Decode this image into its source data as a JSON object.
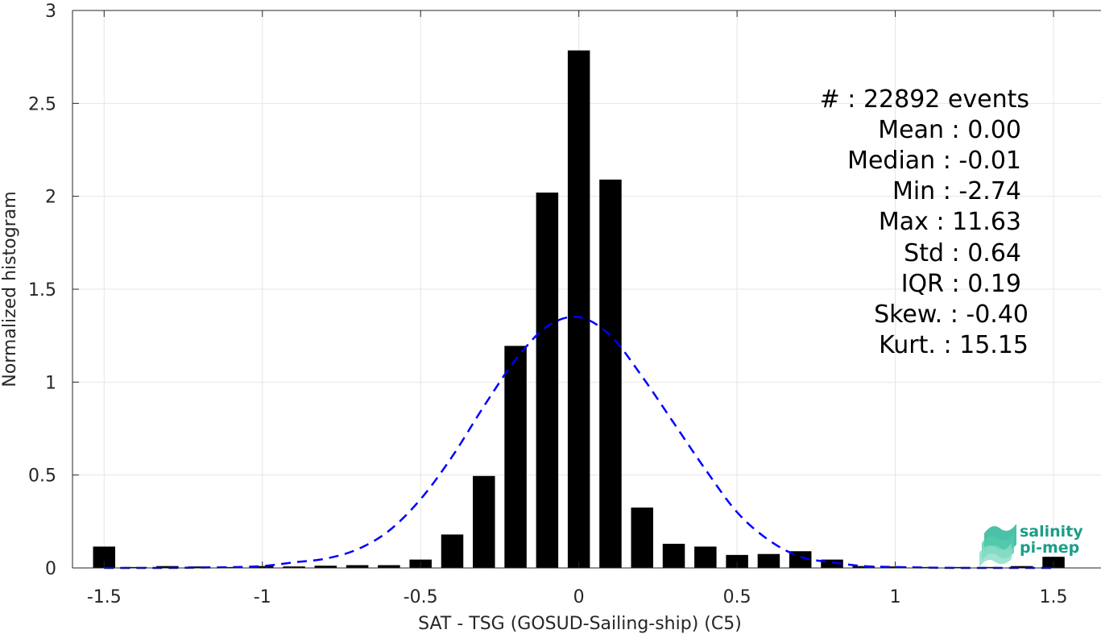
{
  "chart_data": {
    "type": "bar",
    "xlabel": "SAT - TSG (GOSUD-Sailing-ship) (C5)",
    "ylabel": "Normalized histogram",
    "xlim": [
      -1.6,
      1.65
    ],
    "ylim": [
      0,
      3
    ],
    "xticks": [
      -1.5,
      -1,
      -0.5,
      0,
      0.5,
      1,
      1.5
    ],
    "xtick_labels": [
      "-1.5",
      "-1",
      "-0.5",
      "0",
      "0.5",
      "1",
      "1.5"
    ],
    "yticks": [
      0,
      0.5,
      1,
      1.5,
      2,
      2.5,
      3
    ],
    "ytick_labels": [
      "0",
      "0.5",
      "1",
      "1.5",
      "2",
      "2.5",
      "3"
    ],
    "grid": true,
    "bar_width": 0.07,
    "bars": {
      "x": [
        -1.5,
        -1.4,
        -1.3,
        -1.2,
        -1.1,
        -1.0,
        -0.9,
        -0.8,
        -0.7,
        -0.6,
        -0.5,
        -0.4,
        -0.3,
        -0.2,
        -0.1,
        0.0,
        0.1,
        0.2,
        0.3,
        0.4,
        0.5,
        0.6,
        0.7,
        0.8,
        0.9,
        1.0,
        1.1,
        1.2,
        1.3,
        1.4,
        1.5
      ],
      "y": [
        0.115,
        0.005,
        0.01,
        0.008,
        0.005,
        0.01,
        0.008,
        0.012,
        0.015,
        0.015,
        0.045,
        0.18,
        0.495,
        1.195,
        2.02,
        2.785,
        2.09,
        0.325,
        0.13,
        0.115,
        0.07,
        0.075,
        0.09,
        0.045,
        0.01,
        0.008,
        0.005,
        0.005,
        0.005,
        0.01,
        0.06
      ],
      "color": "#000000"
    },
    "fit_curve": {
      "style": "dashed",
      "color": "#0000ff",
      "x": [
        -1.5,
        -1.4,
        -1.3,
        -1.2,
        -1.1,
        -1.0,
        -0.9,
        -0.8,
        -0.7,
        -0.6,
        -0.5,
        -0.4,
        -0.3,
        -0.2,
        -0.1,
        0.0,
        0.1,
        0.2,
        0.3,
        0.4,
        0.5,
        0.6,
        0.7,
        0.8,
        0.9,
        1.0,
        1.1,
        1.2,
        1.3,
        1.4,
        1.5
      ],
      "y": [
        0.0,
        0.0,
        0.0,
        0.002,
        0.004,
        0.01,
        0.03,
        0.05,
        0.1,
        0.2,
        0.37,
        0.6,
        0.87,
        1.12,
        1.3,
        1.35,
        1.25,
        1.03,
        0.78,
        0.53,
        0.3,
        0.15,
        0.06,
        0.03,
        0.01,
        0.005,
        0.002,
        0.0,
        0.0,
        0.0,
        0.0
      ]
    },
    "stats": [
      "#  : 22892 events",
      "Mean : 0.00",
      "Median : -0.01",
      "Min : -2.74",
      "Max : 11.63",
      "Std : 0.64",
      "IQR : 0.19",
      "Skew. : -0.40",
      "Kurt. : 15.15"
    ]
  },
  "logo": {
    "line1": "salinity",
    "line2": "pi-mep",
    "color": "#1a9e8a"
  }
}
